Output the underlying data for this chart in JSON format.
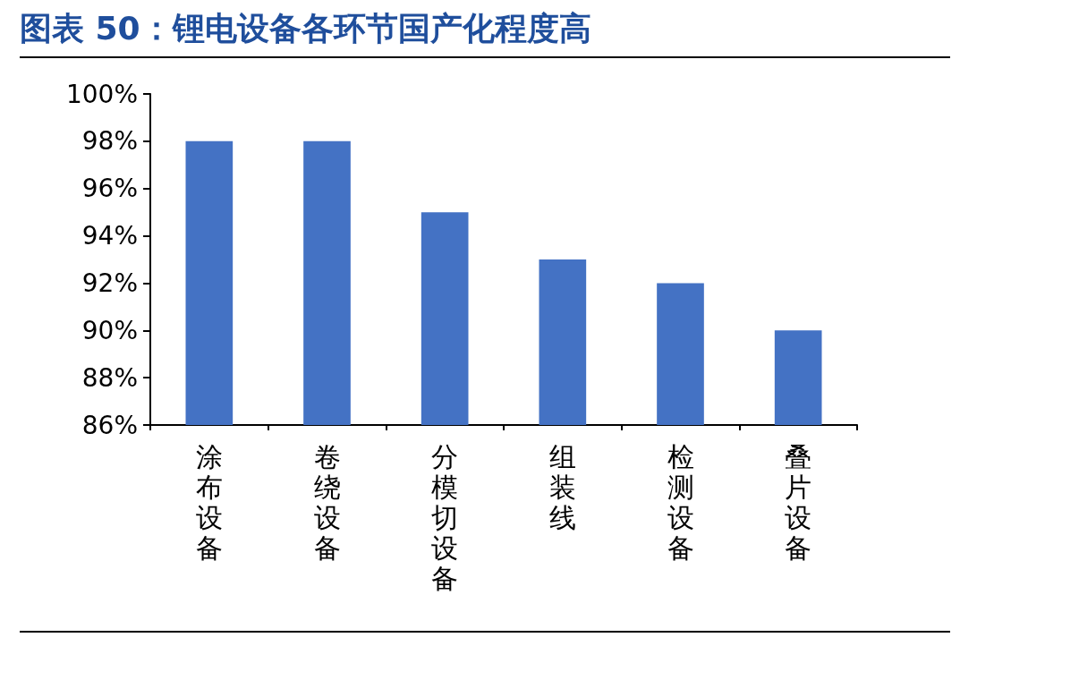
{
  "chart_data": {
    "type": "bar",
    "title": "图表 50：锂电设备各环节国产化程度高",
    "categories": [
      "涂布设备",
      "卷绕设备",
      "分模切设备",
      "组装线",
      "检测设备",
      "叠片设备"
    ],
    "values": [
      98,
      98,
      95,
      93,
      92,
      90
    ],
    "color": "#4472c4",
    "ylim": [
      86,
      100
    ],
    "yticks": [
      {
        "value": 86,
        "label": "86%"
      },
      {
        "value": 88,
        "label": "88%"
      },
      {
        "value": 90,
        "label": "90%"
      },
      {
        "value": 92,
        "label": "92%"
      },
      {
        "value": 94,
        "label": "94%"
      },
      {
        "value": 96,
        "label": "96%"
      },
      {
        "value": 98,
        "label": "98%"
      },
      {
        "value": 100,
        "label": "100%"
      }
    ],
    "grid": false
  }
}
